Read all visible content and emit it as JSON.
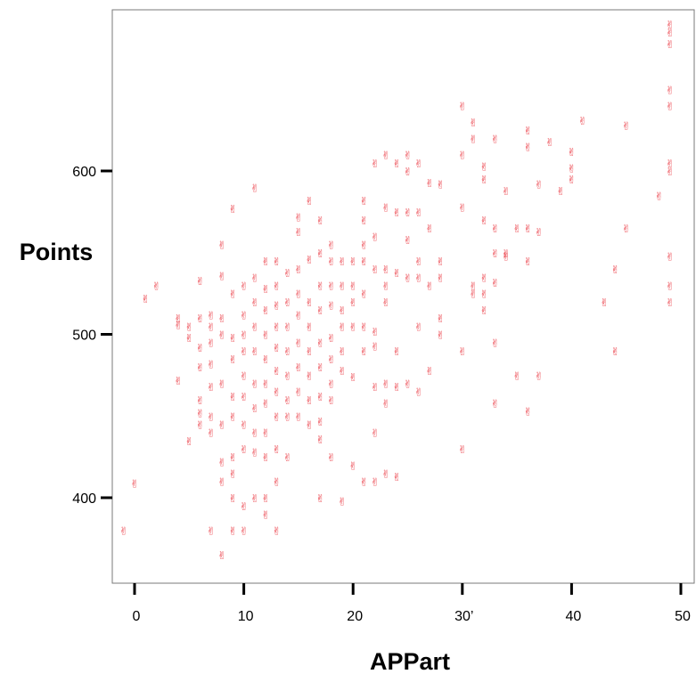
{
  "chart_data": {
    "type": "scatter",
    "title": "",
    "xlabel": "APPart",
    "ylabel": "Points",
    "xlim": [
      -2,
      51
    ],
    "ylim": [
      350,
      695
    ],
    "x_ticks": [
      {
        "value": 0,
        "label": "0"
      },
      {
        "value": 10,
        "label": "10"
      },
      {
        "value": 20,
        "label": "20"
      },
      {
        "value": 30,
        "label": "30’"
      },
      {
        "value": 40,
        "label": "40"
      },
      {
        "value": 50,
        "label": "50"
      }
    ],
    "y_ticks": [
      {
        "value": 400,
        "label": "400"
      },
      {
        "value": 500,
        "label": "500"
      },
      {
        "value": 600,
        "label": "600"
      }
    ],
    "marker_glyph": "✌",
    "marker_color": "#e8212b",
    "grid": false,
    "points": [
      [
        -1,
        380
      ],
      [
        0,
        409
      ],
      [
        1,
        522
      ],
      [
        2,
        530
      ],
      [
        4,
        510
      ],
      [
        4,
        506
      ],
      [
        4,
        472
      ],
      [
        5,
        505
      ],
      [
        5,
        498
      ],
      [
        5,
        435
      ],
      [
        6,
        533
      ],
      [
        6,
        510
      ],
      [
        6,
        492
      ],
      [
        6,
        480
      ],
      [
        6,
        460
      ],
      [
        6,
        452
      ],
      [
        6,
        445
      ],
      [
        7,
        512
      ],
      [
        7,
        505
      ],
      [
        7,
        495
      ],
      [
        7,
        482
      ],
      [
        7,
        468
      ],
      [
        7,
        450
      ],
      [
        7,
        440
      ],
      [
        7,
        380
      ],
      [
        8,
        555
      ],
      [
        8,
        536
      ],
      [
        8,
        510
      ],
      [
        8,
        500
      ],
      [
        8,
        470
      ],
      [
        8,
        445
      ],
      [
        8,
        422
      ],
      [
        8,
        410
      ],
      [
        8,
        365
      ],
      [
        9,
        577
      ],
      [
        9,
        525
      ],
      [
        9,
        498
      ],
      [
        9,
        485
      ],
      [
        9,
        462
      ],
      [
        9,
        450
      ],
      [
        9,
        425
      ],
      [
        9,
        415
      ],
      [
        9,
        400
      ],
      [
        9,
        380
      ],
      [
        10,
        530
      ],
      [
        10,
        512
      ],
      [
        10,
        500
      ],
      [
        10,
        490
      ],
      [
        10,
        475
      ],
      [
        10,
        462
      ],
      [
        10,
        445
      ],
      [
        10,
        430
      ],
      [
        10,
        395
      ],
      [
        10,
        380
      ],
      [
        11,
        590
      ],
      [
        11,
        535
      ],
      [
        11,
        520
      ],
      [
        11,
        505
      ],
      [
        11,
        490
      ],
      [
        11,
        470
      ],
      [
        11,
        455
      ],
      [
        11,
        440
      ],
      [
        11,
        428
      ],
      [
        11,
        400
      ],
      [
        12,
        545
      ],
      [
        12,
        528
      ],
      [
        12,
        515
      ],
      [
        12,
        500
      ],
      [
        12,
        485
      ],
      [
        12,
        470
      ],
      [
        12,
        458
      ],
      [
        12,
        440
      ],
      [
        12,
        425
      ],
      [
        12,
        400
      ],
      [
        12,
        390
      ],
      [
        13,
        545
      ],
      [
        13,
        530
      ],
      [
        13,
        518
      ],
      [
        13,
        505
      ],
      [
        13,
        492
      ],
      [
        13,
        478
      ],
      [
        13,
        465
      ],
      [
        13,
        450
      ],
      [
        13,
        430
      ],
      [
        13,
        410
      ],
      [
        13,
        380
      ],
      [
        14,
        538
      ],
      [
        14,
        520
      ],
      [
        14,
        505
      ],
      [
        14,
        490
      ],
      [
        14,
        475
      ],
      [
        14,
        460
      ],
      [
        14,
        450
      ],
      [
        14,
        425
      ],
      [
        15,
        572
      ],
      [
        15,
        563
      ],
      [
        15,
        540
      ],
      [
        15,
        525
      ],
      [
        15,
        512
      ],
      [
        15,
        495
      ],
      [
        15,
        480
      ],
      [
        15,
        465
      ],
      [
        15,
        450
      ],
      [
        16,
        582
      ],
      [
        16,
        546
      ],
      [
        16,
        520
      ],
      [
        16,
        505
      ],
      [
        16,
        490
      ],
      [
        16,
        475
      ],
      [
        16,
        460
      ],
      [
        16,
        445
      ],
      [
        17,
        570
      ],
      [
        17,
        550
      ],
      [
        17,
        530
      ],
      [
        17,
        515
      ],
      [
        17,
        495
      ],
      [
        17,
        480
      ],
      [
        17,
        462
      ],
      [
        17,
        447
      ],
      [
        17,
        436
      ],
      [
        17,
        400
      ],
      [
        18,
        555
      ],
      [
        18,
        545
      ],
      [
        18,
        530
      ],
      [
        18,
        518
      ],
      [
        18,
        498
      ],
      [
        18,
        485
      ],
      [
        18,
        470
      ],
      [
        18,
        460
      ],
      [
        18,
        425
      ],
      [
        19,
        545
      ],
      [
        19,
        530
      ],
      [
        19,
        515
      ],
      [
        19,
        505
      ],
      [
        19,
        490
      ],
      [
        19,
        478
      ],
      [
        19,
        398
      ],
      [
        20,
        545
      ],
      [
        20,
        530
      ],
      [
        20,
        520
      ],
      [
        20,
        505
      ],
      [
        20,
        474
      ],
      [
        20,
        420
      ],
      [
        21,
        582
      ],
      [
        21,
        570
      ],
      [
        21,
        555
      ],
      [
        21,
        545
      ],
      [
        21,
        525
      ],
      [
        21,
        505
      ],
      [
        21,
        490
      ],
      [
        21,
        410
      ],
      [
        22,
        605
      ],
      [
        22,
        560
      ],
      [
        22,
        540
      ],
      [
        22,
        502
      ],
      [
        22,
        493
      ],
      [
        22,
        468
      ],
      [
        22,
        440
      ],
      [
        22,
        410
      ],
      [
        23,
        610
      ],
      [
        23,
        578
      ],
      [
        23,
        540
      ],
      [
        23,
        530
      ],
      [
        23,
        520
      ],
      [
        23,
        470
      ],
      [
        23,
        458
      ],
      [
        23,
        415
      ],
      [
        24,
        605
      ],
      [
        24,
        575
      ],
      [
        24,
        538
      ],
      [
        24,
        490
      ],
      [
        24,
        468
      ],
      [
        24,
        413
      ],
      [
        25,
        610
      ],
      [
        25,
        600
      ],
      [
        25,
        575
      ],
      [
        25,
        558
      ],
      [
        25,
        535
      ],
      [
        25,
        470
      ],
      [
        26,
        605
      ],
      [
        26,
        575
      ],
      [
        26,
        545
      ],
      [
        26,
        535
      ],
      [
        26,
        505
      ],
      [
        26,
        465
      ],
      [
        27,
        593
      ],
      [
        27,
        565
      ],
      [
        27,
        530
      ],
      [
        27,
        478
      ],
      [
        28,
        592
      ],
      [
        28,
        545
      ],
      [
        28,
        535
      ],
      [
        28,
        510
      ],
      [
        28,
        500
      ],
      [
        30,
        640
      ],
      [
        30,
        610
      ],
      [
        30,
        578
      ],
      [
        30,
        490
      ],
      [
        30,
        430
      ],
      [
        31,
        630
      ],
      [
        31,
        620
      ],
      [
        31,
        530
      ],
      [
        31,
        525
      ],
      [
        32,
        603
      ],
      [
        32,
        595
      ],
      [
        32,
        570
      ],
      [
        32,
        535
      ],
      [
        32,
        525
      ],
      [
        32,
        515
      ],
      [
        33,
        620
      ],
      [
        33,
        565
      ],
      [
        33,
        550
      ],
      [
        33,
        532
      ],
      [
        33,
        495
      ],
      [
        33,
        458
      ],
      [
        34,
        588
      ],
      [
        34,
        550
      ],
      [
        34,
        548
      ],
      [
        35,
        565
      ],
      [
        35,
        475
      ],
      [
        36,
        625
      ],
      [
        36,
        615
      ],
      [
        36,
        565
      ],
      [
        36,
        545
      ],
      [
        36,
        453
      ],
      [
        37,
        592
      ],
      [
        37,
        563
      ],
      [
        37,
        475
      ],
      [
        38,
        618
      ],
      [
        39,
        588
      ],
      [
        40,
        612
      ],
      [
        40,
        602
      ],
      [
        40,
        595
      ],
      [
        41,
        631
      ],
      [
        43,
        520
      ],
      [
        44,
        540
      ],
      [
        44,
        490
      ],
      [
        45,
        628
      ],
      [
        45,
        565
      ],
      [
        48,
        585
      ],
      [
        49,
        690
      ],
      [
        49,
        685
      ],
      [
        49,
        678
      ],
      [
        49,
        650
      ],
      [
        49,
        640
      ],
      [
        49,
        605
      ],
      [
        49,
        600
      ],
      [
        49,
        548
      ],
      [
        49,
        530
      ],
      [
        49,
        520
      ]
    ]
  }
}
